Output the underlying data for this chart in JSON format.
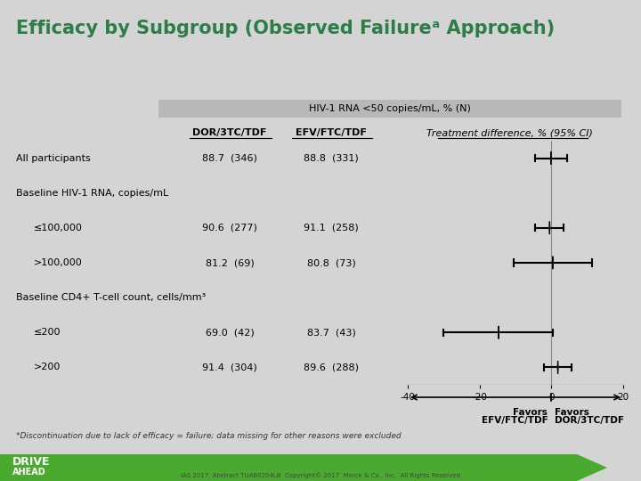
{
  "title": "Efficacy by Subgroup (Observed Failureᵃ Approach)",
  "title_color": "#2d7d46",
  "background_color": "#d4d4d4",
  "header_box_color": "#b8b8b8",
  "header_text": "HIV-1 RNA <50 copies/mL, % (N)",
  "col1_header": "DOR/3TC/TDF",
  "col2_header": "EFV/FTC/TDF",
  "col3_header": "Treatment difference, % (95% CI)",
  "rows": [
    {
      "label": "All participants",
      "indent": 0,
      "dor_val": "88.7  (346)",
      "efv_val": "88.8  (331)",
      "point": -0.1,
      "ci_lo": -4.5,
      "ci_hi": 4.3
    },
    {
      "label": "Baseline HIV-1 RNA, copies/mL",
      "indent": 0,
      "dor_val": "",
      "efv_val": "",
      "point": null,
      "ci_lo": null,
      "ci_hi": null
    },
    {
      "label": "≤100,000",
      "indent": 1,
      "dor_val": "90.6  (277)",
      "efv_val": "91.1  (258)",
      "point": -0.5,
      "ci_lo": -4.5,
      "ci_hi": 3.5
    },
    {
      "label": ">100,000",
      "indent": 1,
      "dor_val": "81.2  (69)",
      "efv_val": "80.8  (73)",
      "point": 0.4,
      "ci_lo": -10.5,
      "ci_hi": 11.3
    },
    {
      "label": "Baseline CD4+ T-cell count, cells/mm³",
      "indent": 0,
      "dor_val": "",
      "efv_val": "",
      "point": null,
      "ci_lo": null,
      "ci_hi": null
    },
    {
      "label": "≤200",
      "indent": 1,
      "dor_val": "69.0  (42)",
      "efv_val": "83.7  (43)",
      "point": -14.7,
      "ci_lo": -30.0,
      "ci_hi": 0.5
    },
    {
      "label": ">200",
      "indent": 1,
      "dor_val": "91.4  (304)",
      "efv_val": "89.6  (288)",
      "point": 1.8,
      "ci_lo": -2.0,
      "ci_hi": 5.6
    }
  ],
  "xmin": -40,
  "xmax": 20,
  "xticks": [
    -40,
    -20,
    0,
    20
  ],
  "footnote": "*Discontinuation due to lack of efficacy = failure; data missing for other reasons were excluded",
  "point_color": "#555555",
  "line_color": "#000000",
  "green_color": "#4aaa30"
}
